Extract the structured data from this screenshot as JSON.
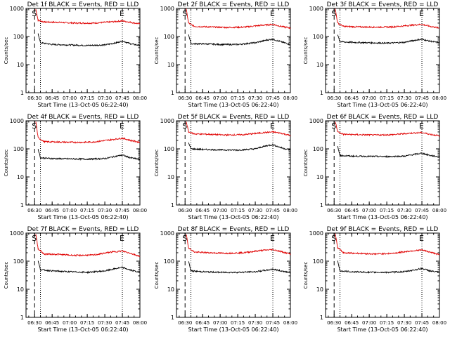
{
  "page": {
    "background": "#ffffff"
  },
  "style": {
    "events_color": "#000000",
    "lld_color": "#e00000",
    "axis_color": "#000000"
  },
  "shared": {
    "ylabel": "Counts/sec",
    "xlabel": "Start Time (13-Oct-05 06:22:40)",
    "xticks": [
      "06:30",
      "06:45",
      "07:00",
      "07:15",
      "07:30",
      "07:45",
      "08:00"
    ],
    "yticks": [
      "1",
      "10",
      "100",
      "1000"
    ],
    "start_marker": "S",
    "end_marker": "E"
  },
  "chart_data": [
    {
      "type": "line",
      "title": "Det 1f BLACK = Events, RED = LLD",
      "x_range": [
        "06:22:40",
        "08:00"
      ],
      "yscale": "log",
      "ylim": [
        1,
        1000
      ],
      "x_markers": [
        {
          "label": "S",
          "time": "06:30",
          "style": "dashed"
        },
        {
          "label": "",
          "time": "06:35",
          "style": "dotted"
        },
        {
          "label": "E",
          "time": "07:45",
          "style": "dotted"
        }
      ],
      "series": [
        {
          "color": "red",
          "points": [
            [
              "06:31",
              950
            ],
            [
              "06:33",
              380
            ],
            [
              "06:38",
              330
            ],
            [
              "06:50",
              320
            ],
            [
              "07:05",
              300
            ],
            [
              "07:20",
              300
            ],
            [
              "07:35",
              330
            ],
            [
              "07:45",
              360
            ],
            [
              "07:52",
              320
            ],
            [
              "08:00",
              280
            ]
          ]
        },
        {
          "color": "black",
          "points": [
            [
              "06:33",
              130
            ],
            [
              "06:35",
              60
            ],
            [
              "06:45",
              52
            ],
            [
              "07:00",
              50
            ],
            [
              "07:15",
              48
            ],
            [
              "07:30",
              50
            ],
            [
              "07:40",
              60
            ],
            [
              "07:45",
              70
            ],
            [
              "07:52",
              55
            ],
            [
              "08:00",
              48
            ]
          ]
        }
      ]
    },
    {
      "type": "line",
      "title": "Det 2f BLACK = Events, RED = LLD",
      "x_range": [
        "06:22:40",
        "08:00"
      ],
      "yscale": "log",
      "ylim": [
        1,
        1000
      ],
      "x_markers": [
        {
          "label": "S",
          "time": "06:30",
          "style": "dashed"
        },
        {
          "label": "",
          "time": "06:35",
          "style": "dotted"
        },
        {
          "label": "E",
          "time": "07:45",
          "style": "dotted"
        }
      ],
      "series": [
        {
          "color": "red",
          "points": [
            [
              "06:31",
              950
            ],
            [
              "06:33",
              300
            ],
            [
              "06:38",
              230
            ],
            [
              "06:50",
              220
            ],
            [
              "07:05",
              210
            ],
            [
              "07:20",
              215
            ],
            [
              "07:35",
              250
            ],
            [
              "07:45",
              270
            ],
            [
              "07:52",
              230
            ],
            [
              "08:00",
              200
            ]
          ]
        },
        {
          "color": "black",
          "points": [
            [
              "06:33",
              120
            ],
            [
              "06:35",
              55
            ],
            [
              "06:45",
              55
            ],
            [
              "07:00",
              52
            ],
            [
              "07:15",
              52
            ],
            [
              "07:30",
              60
            ],
            [
              "07:40",
              75
            ],
            [
              "07:45",
              80
            ],
            [
              "07:52",
              65
            ],
            [
              "08:00",
              52
            ]
          ]
        }
      ]
    },
    {
      "type": "line",
      "title": "Det 3f BLACK = Events, RED = LLD",
      "x_range": [
        "06:22:40",
        "08:00"
      ],
      "yscale": "log",
      "ylim": [
        1,
        1000
      ],
      "x_markers": [
        {
          "label": "S",
          "time": "06:30",
          "style": "dashed"
        },
        {
          "label": "",
          "time": "06:35",
          "style": "dotted"
        },
        {
          "label": "E",
          "time": "07:45",
          "style": "dotted"
        }
      ],
      "series": [
        {
          "color": "red",
          "points": [
            [
              "06:31",
              950
            ],
            [
              "06:33",
              300
            ],
            [
              "06:38",
              230
            ],
            [
              "06:50",
              220
            ],
            [
              "07:05",
              215
            ],
            [
              "07:20",
              220
            ],
            [
              "07:35",
              250
            ],
            [
              "07:45",
              270
            ],
            [
              "07:52",
              230
            ],
            [
              "08:00",
              200
            ]
          ]
        },
        {
          "color": "black",
          "points": [
            [
              "06:33",
              120
            ],
            [
              "06:35",
              65
            ],
            [
              "06:45",
              62
            ],
            [
              "07:00",
              60
            ],
            [
              "07:15",
              58
            ],
            [
              "07:30",
              62
            ],
            [
              "07:40",
              75
            ],
            [
              "07:45",
              80
            ],
            [
              "07:52",
              68
            ],
            [
              "08:00",
              60
            ]
          ]
        }
      ]
    },
    {
      "type": "line",
      "title": "Det 4f BLACK = Events, RED = LLD",
      "x_range": [
        "06:22:40",
        "08:00"
      ],
      "yscale": "log",
      "ylim": [
        1,
        1000
      ],
      "x_markers": [
        {
          "label": "S",
          "time": "06:30",
          "style": "dashed"
        },
        {
          "label": "",
          "time": "06:35",
          "style": "dotted"
        },
        {
          "label": "E",
          "time": "07:45",
          "style": "dotted"
        }
      ],
      "series": [
        {
          "color": "red",
          "points": [
            [
              "06:31",
              950
            ],
            [
              "06:33",
              250
            ],
            [
              "06:38",
              180
            ],
            [
              "06:50",
              175
            ],
            [
              "07:05",
              170
            ],
            [
              "07:20",
              175
            ],
            [
              "07:35",
              210
            ],
            [
              "07:45",
              240
            ],
            [
              "07:52",
              200
            ],
            [
              "08:00",
              170
            ]
          ]
        },
        {
          "color": "black",
          "points": [
            [
              "06:33",
              100
            ],
            [
              "06:35",
              48
            ],
            [
              "06:45",
              45
            ],
            [
              "07:00",
              44
            ],
            [
              "07:15",
              43
            ],
            [
              "07:30",
              45
            ],
            [
              "07:40",
              55
            ],
            [
              "07:45",
              60
            ],
            [
              "07:52",
              48
            ],
            [
              "08:00",
              42
            ]
          ]
        }
      ]
    },
    {
      "type": "line",
      "title": "Det 5f BLACK = Events, RED = LLD",
      "x_range": [
        "06:22:40",
        "08:00"
      ],
      "yscale": "log",
      "ylim": [
        1,
        1000
      ],
      "x_markers": [
        {
          "label": "S",
          "time": "06:30",
          "style": "dashed"
        },
        {
          "label": "",
          "time": "06:35",
          "style": "dotted"
        },
        {
          "label": "E",
          "time": "07:45",
          "style": "dotted"
        }
      ],
      "series": [
        {
          "color": "red",
          "points": [
            [
              "06:31",
              950
            ],
            [
              "06:33",
              400
            ],
            [
              "06:38",
              340
            ],
            [
              "06:50",
              330
            ],
            [
              "07:05",
              310
            ],
            [
              "07:20",
              320
            ],
            [
              "07:35",
              370
            ],
            [
              "07:45",
              400
            ],
            [
              "07:52",
              360
            ],
            [
              "08:00",
              300
            ]
          ]
        },
        {
          "color": "black",
          "points": [
            [
              "06:33",
              160
            ],
            [
              "06:35",
              100
            ],
            [
              "06:45",
              95
            ],
            [
              "07:00",
              92
            ],
            [
              "07:15",
              90
            ],
            [
              "07:30",
              100
            ],
            [
              "07:40",
              130
            ],
            [
              "07:45",
              140
            ],
            [
              "07:52",
              110
            ],
            [
              "08:00",
              90
            ]
          ]
        }
      ]
    },
    {
      "type": "line",
      "title": "Det 6f BLACK = Events, RED = LLD",
      "x_range": [
        "06:22:40",
        "08:00"
      ],
      "yscale": "log",
      "ylim": [
        1,
        1000
      ],
      "x_markers": [
        {
          "label": "S",
          "time": "06:30",
          "style": "dashed"
        },
        {
          "label": "",
          "time": "06:35",
          "style": "dotted"
        },
        {
          "label": "E",
          "time": "07:45",
          "style": "dotted"
        }
      ],
      "series": [
        {
          "color": "red",
          "points": [
            [
              "06:31",
              950
            ],
            [
              "06:33",
              400
            ],
            [
              "06:38",
              330
            ],
            [
              "06:50",
              320
            ],
            [
              "07:05",
              310
            ],
            [
              "07:20",
              320
            ],
            [
              "07:35",
              360
            ],
            [
              "07:45",
              380
            ],
            [
              "07:52",
              330
            ],
            [
              "08:00",
              290
            ]
          ]
        },
        {
          "color": "black",
          "points": [
            [
              "06:33",
              120
            ],
            [
              "06:35",
              58
            ],
            [
              "06:45",
              55
            ],
            [
              "07:00",
              54
            ],
            [
              "07:15",
              53
            ],
            [
              "07:30",
              55
            ],
            [
              "07:40",
              65
            ],
            [
              "07:45",
              70
            ],
            [
              "07:52",
              58
            ],
            [
              "08:00",
              52
            ]
          ]
        }
      ]
    },
    {
      "type": "line",
      "title": "Det 7f BLACK = Events, RED = LLD",
      "x_range": [
        "06:22:40",
        "08:00"
      ],
      "yscale": "log",
      "ylim": [
        1,
        1000
      ],
      "x_markers": [
        {
          "label": "S",
          "time": "06:30",
          "style": "dashed"
        },
        {
          "label": "",
          "time": "06:35",
          "style": "dotted"
        },
        {
          "label": "E",
          "time": "07:45",
          "style": "dotted"
        }
      ],
      "series": [
        {
          "color": "red",
          "points": [
            [
              "06:31",
              950
            ],
            [
              "06:33",
              280
            ],
            [
              "06:38",
              180
            ],
            [
              "06:50",
              175
            ],
            [
              "07:05",
              160
            ],
            [
              "07:20",
              165
            ],
            [
              "07:35",
              210
            ],
            [
              "07:45",
              230
            ],
            [
              "07:52",
              190
            ],
            [
              "08:00",
              150
            ]
          ]
        },
        {
          "color": "black",
          "points": [
            [
              "06:33",
              100
            ],
            [
              "06:35",
              50
            ],
            [
              "06:45",
              45
            ],
            [
              "07:00",
              42
            ],
            [
              "07:15",
              40
            ],
            [
              "07:30",
              45
            ],
            [
              "07:40",
              55
            ],
            [
              "07:45",
              60
            ],
            [
              "07:52",
              48
            ],
            [
              "08:00",
              40
            ]
          ]
        }
      ]
    },
    {
      "type": "line",
      "title": "Det 8f BLACK = Events, RED = LLD",
      "x_range": [
        "06:22:40",
        "08:00"
      ],
      "yscale": "log",
      "ylim": [
        1,
        1000
      ],
      "x_markers": [
        {
          "label": "S",
          "time": "06:30",
          "style": "dashed"
        },
        {
          "label": "",
          "time": "06:35",
          "style": "dotted"
        },
        {
          "label": "E",
          "time": "07:45",
          "style": "dotted"
        }
      ],
      "series": [
        {
          "color": "red",
          "points": [
            [
              "06:31",
              950
            ],
            [
              "06:33",
              300
            ],
            [
              "06:38",
              210
            ],
            [
              "06:50",
              200
            ],
            [
              "07:05",
              190
            ],
            [
              "07:20",
              200
            ],
            [
              "07:35",
              240
            ],
            [
              "07:45",
              260
            ],
            [
              "07:52",
              220
            ],
            [
              "08:00",
              180
            ]
          ]
        },
        {
          "color": "black",
          "points": [
            [
              "06:33",
              100
            ],
            [
              "06:35",
              45
            ],
            [
              "06:45",
              42
            ],
            [
              "07:00",
              40
            ],
            [
              "07:15",
              40
            ],
            [
              "07:30",
              42
            ],
            [
              "07:40",
              48
            ],
            [
              "07:45",
              52
            ],
            [
              "07:52",
              45
            ],
            [
              "08:00",
              40
            ]
          ]
        }
      ]
    },
    {
      "type": "line",
      "title": "Det 9f BLACK = Events, RED = LLD",
      "x_range": [
        "06:22:40",
        "08:00"
      ],
      "yscale": "log",
      "ylim": [
        1,
        1000
      ],
      "x_markers": [
        {
          "label": "S",
          "time": "06:30",
          "style": "dashed"
        },
        {
          "label": "",
          "time": "06:35",
          "style": "dotted"
        },
        {
          "label": "E",
          "time": "07:45",
          "style": "dotted"
        }
      ],
      "series": [
        {
          "color": "red",
          "points": [
            [
              "06:31",
              950
            ],
            [
              "06:33",
              300
            ],
            [
              "06:38",
              200
            ],
            [
              "06:50",
              190
            ],
            [
              "07:05",
              180
            ],
            [
              "07:20",
              190
            ],
            [
              "07:35",
              230
            ],
            [
              "07:45",
              250
            ],
            [
              "07:52",
              210
            ],
            [
              "08:00",
              170
            ]
          ]
        },
        {
          "color": "black",
          "points": [
            [
              "06:33",
              100
            ],
            [
              "06:35",
              45
            ],
            [
              "06:45",
              42
            ],
            [
              "07:00",
              40
            ],
            [
              "07:15",
              40
            ],
            [
              "07:30",
              42
            ],
            [
              "07:40",
              50
            ],
            [
              "07:45",
              55
            ],
            [
              "07:52",
              45
            ],
            [
              "08:00",
              40
            ]
          ]
        }
      ]
    }
  ]
}
